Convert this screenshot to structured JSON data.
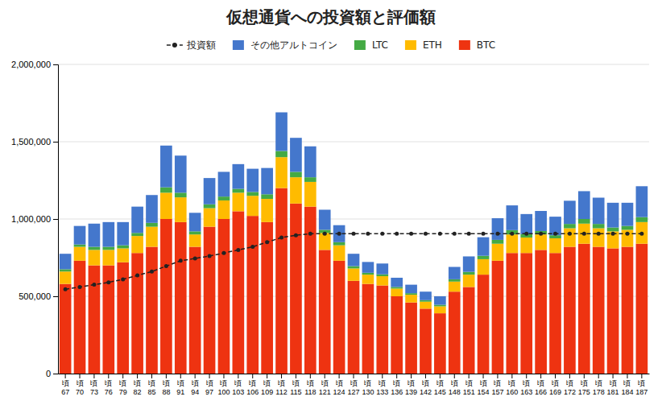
{
  "chart_data": {
    "type": "bar",
    "title": "仮想通貨への投資額と評価額",
    "stacked": true,
    "grid": true,
    "legend": "top",
    "categories": [
      "頃\n67",
      "頃\n70",
      "頃\n73",
      "頃\n76",
      "頃\n79",
      "頃\n82",
      "頃\n85",
      "頃\n88",
      "頃\n91",
      "頃\n94",
      "頃\n97",
      "頃\n100",
      "頃\n103",
      "頃\n106",
      "頃\n109",
      "頃\n112",
      "頃\n115",
      "頃\n118",
      "頃\n121",
      "頃\n124",
      "頃\n127",
      "頃\n130",
      "頃\n133",
      "頃\n136",
      "頃\n139",
      "頃\n142",
      "頃\n145",
      "頃\n148",
      "頃\n151",
      "頃\n154",
      "頃\n157",
      "頃\n160",
      "頃\n163",
      "頃\n166",
      "頃\n169",
      "頃\n172",
      "頃\n175",
      "頃\n178",
      "頃\n181",
      "頃\n184",
      "頃\n187"
    ],
    "series": [
      {
        "name": "BTC",
        "color": "#EE3311",
        "values": [
          580000,
          730000,
          700000,
          700000,
          720000,
          780000,
          820000,
          1000000,
          980000,
          820000,
          950000,
          1000000,
          1050000,
          1020000,
          980000,
          1200000,
          1100000,
          1080000,
          800000,
          730000,
          600000,
          580000,
          570000,
          500000,
          460000,
          420000,
          390000,
          530000,
          560000,
          640000,
          730000,
          780000,
          780000,
          800000,
          780000,
          820000,
          840000,
          820000,
          810000,
          820000,
          840000
        ]
      },
      {
        "name": "ETH",
        "color": "#FFBB00",
        "values": [
          80000,
          90000,
          100000,
          100000,
          90000,
          110000,
          130000,
          170000,
          160000,
          80000,
          120000,
          120000,
          120000,
          130000,
          150000,
          200000,
          170000,
          160000,
          110000,
          100000,
          80000,
          60000,
          60000,
          50000,
          50000,
          45000,
          45000,
          65000,
          80000,
          100000,
          110000,
          120000,
          100000,
          100000,
          95000,
          120000,
          130000,
          120000,
          110000,
          110000,
          140000
        ]
      },
      {
        "name": "LTC",
        "color": "#44AA44",
        "values": [
          15000,
          15000,
          20000,
          20000,
          20000,
          20000,
          25000,
          35000,
          30000,
          20000,
          25000,
          25000,
          25000,
          25000,
          30000,
          40000,
          35000,
          30000,
          20000,
          20000,
          15000,
          12000,
          12000,
          10000,
          10000,
          10000,
          10000,
          15000,
          18000,
          22000,
          25000,
          28000,
          22000,
          22000,
          20000,
          28000,
          30000,
          28000,
          25000,
          25000,
          32000
        ]
      },
      {
        "name": "その他アルトコイン",
        "color": "#4477CC",
        "values": [
          100000,
          120000,
          150000,
          160000,
          150000,
          170000,
          180000,
          270000,
          240000,
          120000,
          170000,
          160000,
          160000,
          150000,
          170000,
          250000,
          220000,
          200000,
          130000,
          110000,
          80000,
          70000,
          70000,
          60000,
          55000,
          55000,
          55000,
          80000,
          100000,
          120000,
          140000,
          160000,
          130000,
          130000,
          120000,
          150000,
          180000,
          170000,
          160000,
          150000,
          200000
        ]
      },
      {
        "name": "投資額",
        "type": "line",
        "color": "#222222",
        "line_style": "dashed",
        "marker": "circle",
        "values": [
          545000,
          560000,
          575000,
          590000,
          610000,
          635000,
          660000,
          695000,
          730000,
          745000,
          760000,
          780000,
          800000,
          820000,
          850000,
          880000,
          895000,
          905000,
          905000,
          905000,
          905000,
          905000,
          905000,
          905000,
          905000,
          905000,
          905000,
          905000,
          905000,
          905000,
          905000,
          905000,
          905000,
          905000,
          905000,
          905000,
          905000,
          905000,
          905000,
          905000,
          905000
        ]
      }
    ],
    "ylim": [
      0,
      2000000
    ],
    "yticks": [
      0,
      {
        "value": 500000,
        "label": "500,000"
      },
      {
        "value": 1000000,
        "label": "1,000,000"
      },
      {
        "value": 1500000,
        "label": "1,500,000"
      },
      {
        "value": 2000000,
        "label": "2,000,000"
      }
    ]
  }
}
